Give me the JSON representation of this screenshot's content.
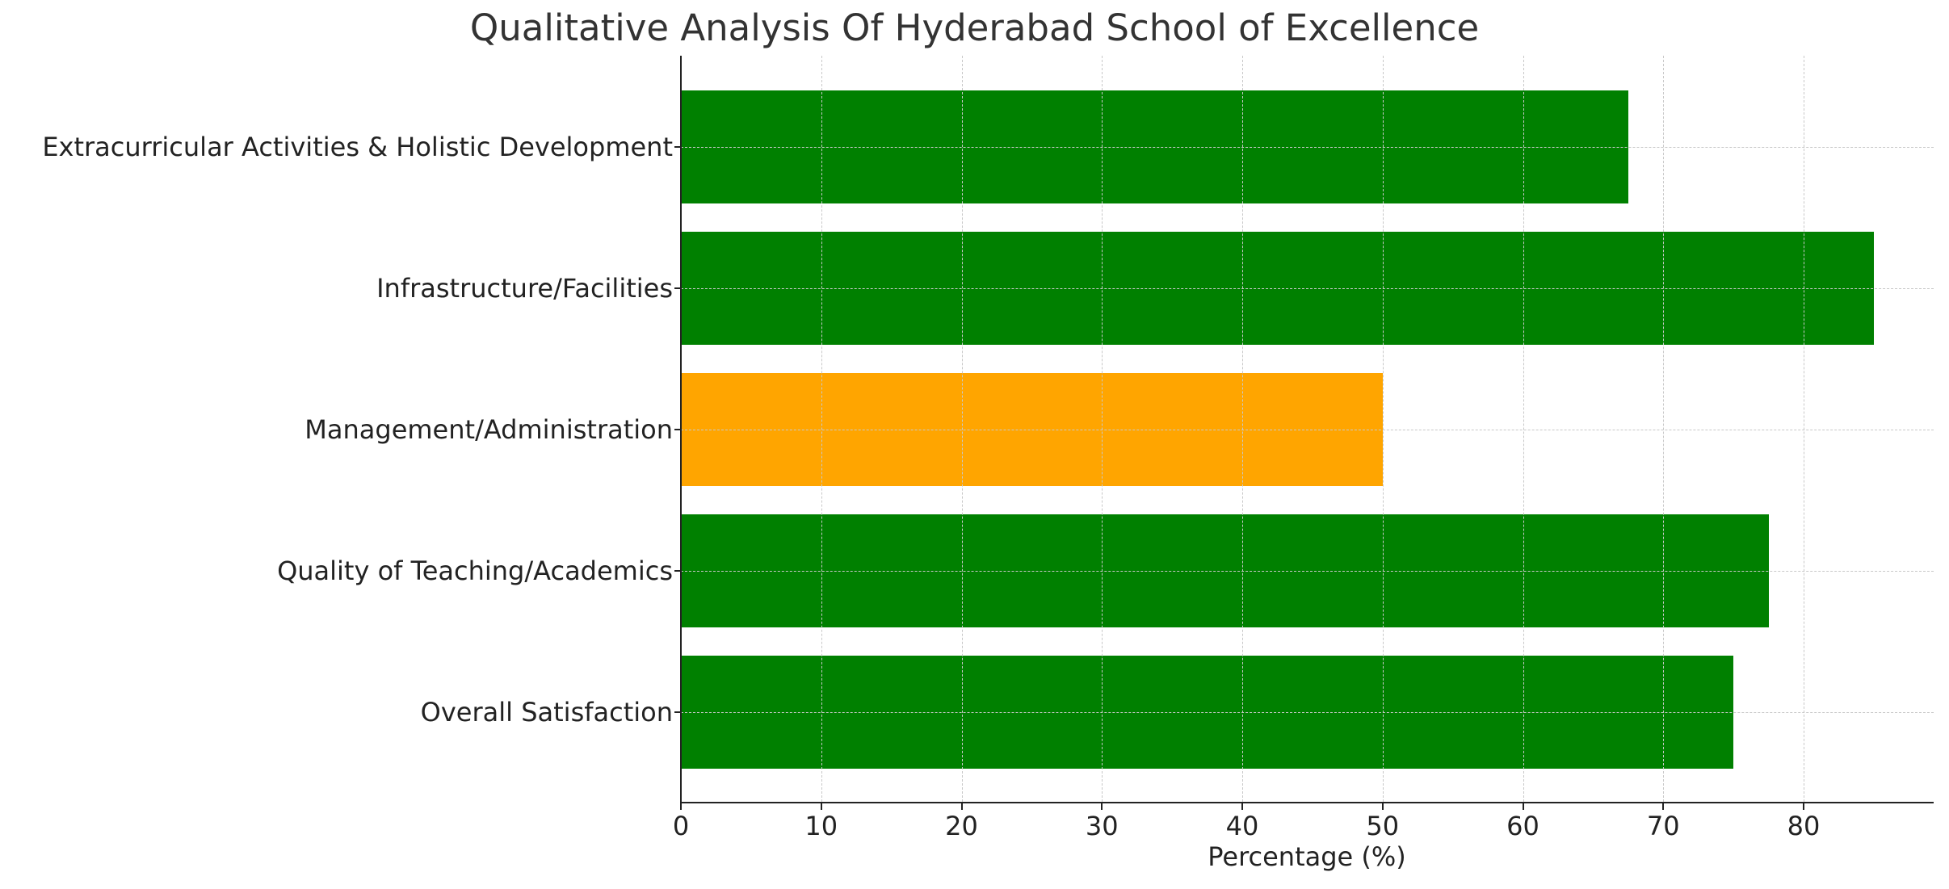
{
  "chart_data": {
    "type": "bar",
    "orientation": "horizontal",
    "title": "Qualitative Analysis Of Hyderabad School of Excellence",
    "xlabel": "Percentage (%)",
    "ylabel": "",
    "categories": [
      "Overall Satisfaction",
      "Quality of Teaching/Academics",
      "Management/Administration",
      "Infrastructure/Facilities",
      "Extracurricular Activities & Holistic Development"
    ],
    "values": [
      75,
      77.5,
      50,
      85,
      67.5
    ],
    "bar_colors": [
      "#008000",
      "#008000",
      "#FFA500",
      "#008000",
      "#008000"
    ],
    "xlim": [
      0,
      89.3
    ],
    "xticks": [
      0,
      10,
      20,
      30,
      40,
      50,
      60,
      70,
      80
    ],
    "grid": true,
    "grid_style": "dashed",
    "legend": null
  },
  "colors": {
    "positive": "#008000",
    "neutral": "#FFA500",
    "grid": "#c8c8c8",
    "title": "#333333"
  }
}
